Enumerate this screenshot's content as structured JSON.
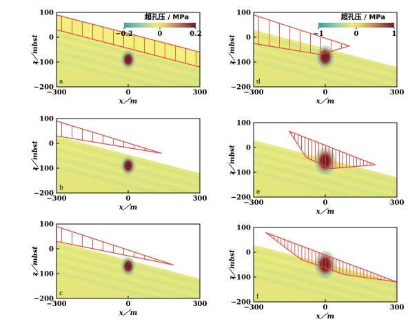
{
  "colorbar_title": "超孔压 / MPa",
  "chart_data": [
    {
      "type": "heatmap",
      "panel_label": "a",
      "xlim": [
        -300,
        300
      ],
      "ylim": [
        -200,
        100
      ],
      "xticks": [
        "−300",
        "0",
        "300"
      ],
      "yticks": [
        "100",
        "0",
        "−100",
        "−200"
      ],
      "xlabel": "x／m",
      "ylabel": "z／mbst",
      "colorbar": {
        "range": [
          -0.2,
          0.2
        ],
        "ticks": [
          "−0.2",
          "0",
          "0.2"
        ]
      },
      "slide_outline": {
        "top_left": [
          -300,
          90
        ],
        "top_right": [
          300,
          -60
        ],
        "bottom_left": [
          -300,
          30
        ],
        "bottom_right": [
          300,
          -120
        ]
      },
      "peak_anomaly": {
        "x": 0,
        "z": -90,
        "value": 0.2
      }
    },
    {
      "type": "heatmap",
      "panel_label": "b",
      "xlim": [
        -300,
        300
      ],
      "ylim": [
        -200,
        100
      ],
      "xticks": [
        "−300",
        "0",
        "300"
      ],
      "yticks": [
        "100",
        "0",
        "−100",
        "−200"
      ],
      "xlabel": "x／m",
      "ylabel": "z／mbst",
      "slide_outline": {
        "top_left": [
          -300,
          90
        ],
        "tip": [
          140,
          -40
        ],
        "bottom_left": [
          -300,
          30
        ]
      },
      "peak_anomaly": {
        "x": 0,
        "z": -90,
        "value": 0.2
      }
    },
    {
      "type": "heatmap",
      "panel_label": "c",
      "xlim": [
        -300,
        300
      ],
      "ylim": [
        -200,
        100
      ],
      "xticks": [
        "−300",
        "0",
        "300"
      ],
      "yticks": [
        "100",
        "0",
        "−100",
        "−200"
      ],
      "xlabel": "x／m",
      "ylabel": "z／mbst",
      "slide_outline": {
        "top_left": [
          -300,
          90
        ],
        "tip": [
          190,
          -65
        ],
        "bottom_left": [
          -300,
          30
        ]
      },
      "peak_anomaly": {
        "x": 0,
        "z": -70,
        "value": 0.2
      }
    },
    {
      "type": "heatmap",
      "panel_label": "d",
      "xlim": [
        -300,
        300
      ],
      "ylim": [
        -200,
        100
      ],
      "xticks": [
        "−300",
        "0",
        "300"
      ],
      "yticks": [
        "100",
        "0",
        "−100",
        "−200"
      ],
      "xlabel": "x／m",
      "ylabel": "z／mbst",
      "colorbar": {
        "range": [
          -1,
          1
        ],
        "ticks": [
          "−1",
          "0",
          "1"
        ]
      },
      "slide_outline": {
        "top_left": [
          -300,
          90
        ],
        "tip": [
          100,
          -35
        ],
        "bottom_left": [
          -300,
          -25
        ],
        "bottom_right": [
          -20,
          -70
        ]
      },
      "peak_anomaly": {
        "x": 0,
        "z": -80,
        "value": 0.6
      }
    },
    {
      "type": "heatmap",
      "panel_label": "e",
      "xlim": [
        -300,
        300
      ],
      "ylim": [
        -200,
        100
      ],
      "xticks": [
        "−300",
        "0",
        "300"
      ],
      "yticks": [
        "100",
        "0",
        "−100",
        "−200"
      ],
      "xlabel": "x／m",
      "ylabel": "z／mbst",
      "slide_outline": {
        "top_left": [
          -150,
          65
        ],
        "tip": [
          210,
          -70
        ],
        "bottom_lowest": [
          20,
          -85
        ]
      },
      "peak_anomaly": {
        "x": 0,
        "z": -55,
        "value": 1
      }
    },
    {
      "type": "heatmap",
      "panel_label": "f",
      "xlim": [
        -300,
        300
      ],
      "ylim": [
        -200,
        100
      ],
      "xticks": [
        "−300",
        "0",
        "300"
      ],
      "yticks": [
        "100",
        "0",
        "−100",
        "−200"
      ],
      "xlabel": "x／m",
      "ylabel": "z／mbst",
      "slide_outline": {
        "top_left": [
          -250,
          80
        ],
        "tip": [
          300,
          -120
        ],
        "bottom_lowest": [
          80,
          -90
        ]
      },
      "peak_anomaly": {
        "x": 0,
        "z": -50,
        "value": 1
      }
    }
  ]
}
